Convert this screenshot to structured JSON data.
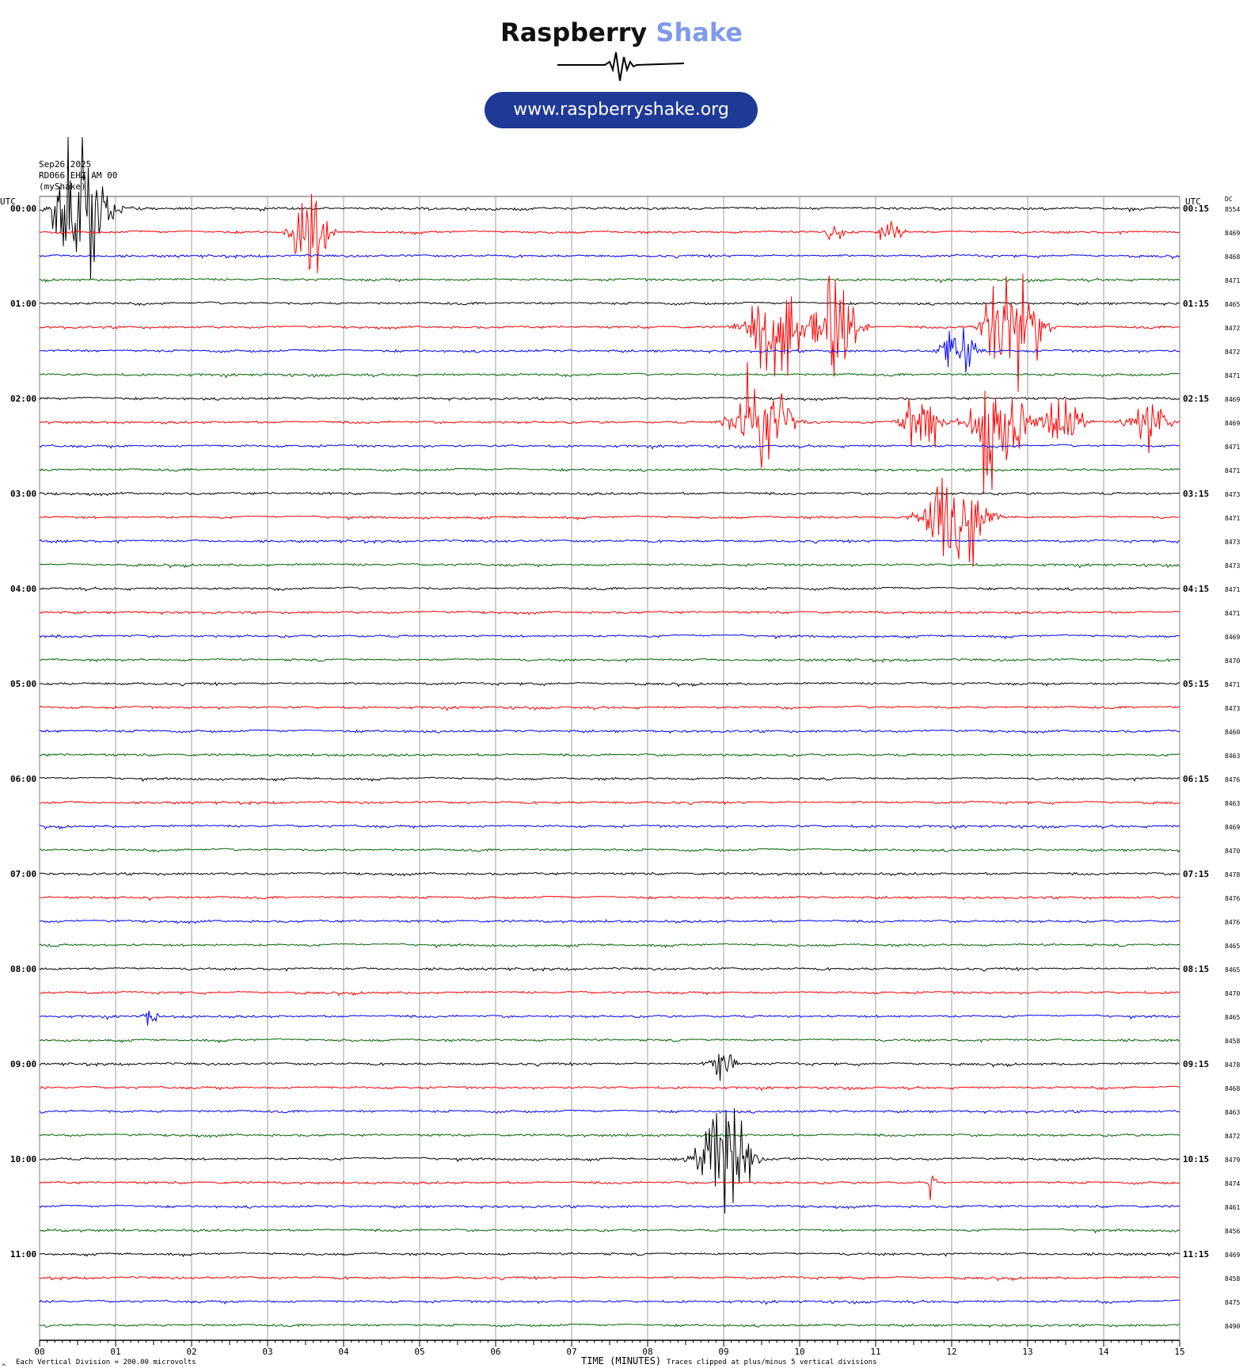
{
  "header": {
    "brand_primary": "Raspberry",
    "brand_accent": "Shake",
    "website": "www.raspberryshake.org"
  },
  "station_info": {
    "line1": "Sep26,2025",
    "line2": "RD066 EHZ AM 00",
    "line3": "(myShake)"
  },
  "labels": {
    "left_utc": "UTC",
    "right_utc": "UTC",
    "dc": "DC",
    "xlabel": "TIME (MINUTES)",
    "scale_note": "Each Vertical Division =  200.00 microvolts",
    "clip_note": "Traces clipped at plus/minus 5 vertical divisions",
    "corner_mark": "^"
  },
  "colors": {
    "trace_cycle": [
      "#000000",
      "#ff0000",
      "#0000ff",
      "#006400"
    ],
    "brand_accent": "#7f9ae8",
    "pill": "#1e3a96",
    "grid": "#888888"
  },
  "chart_data": {
    "type": "line",
    "title": "",
    "x_ticks": [
      "00",
      "01",
      "02",
      "03",
      "04",
      "05",
      "06",
      "07",
      "08",
      "09",
      "10",
      "11",
      "12",
      "13",
      "14",
      "15"
    ],
    "xlim": [
      0,
      15
    ],
    "left_hour_labels": [
      "00:00",
      "01:00",
      "02:00",
      "03:00",
      "04:00",
      "05:00",
      "06:00",
      "07:00",
      "08:00",
      "09:00",
      "10:00",
      "11:00"
    ],
    "right_hour_labels": [
      "00:15",
      "01:15",
      "02:15",
      "03:15",
      "04:15",
      "05:15",
      "06:15",
      "07:15",
      "08:15",
      "09:15",
      "10:15",
      "11:15"
    ],
    "dc_values": [
      8554,
      8469,
      8468,
      8471,
      8465,
      8472,
      8472,
      8471,
      8469,
      8469,
      8471,
      8471,
      8473,
      8471,
      8473,
      8473,
      8471,
      8471,
      8469,
      8470,
      8471,
      8473,
      8460,
      8463,
      8476,
      8463,
      8469,
      8470,
      8478,
      8476,
      8476,
      8465,
      8465,
      8470,
      8465,
      8458,
      8478,
      8468,
      8463,
      8472,
      8479,
      8474,
      8461,
      8456,
      8469,
      8458,
      8475,
      8490
    ],
    "trace_count": 48,
    "events": [
      {
        "row": 0,
        "minute": 0.55,
        "amplitude": 8,
        "duration": 0.9
      },
      {
        "row": 1,
        "minute": 3.55,
        "amplitude": 5,
        "duration": 0.6
      },
      {
        "row": 1,
        "minute": 11.2,
        "amplitude": 1.4,
        "duration": 0.4
      },
      {
        "row": 1,
        "minute": 10.45,
        "amplitude": 1.2,
        "duration": 0.3
      },
      {
        "row": 5,
        "minute": 9.7,
        "amplitude": 5,
        "duration": 0.9
      },
      {
        "row": 5,
        "minute": 10.45,
        "amplitude": 5,
        "duration": 0.8
      },
      {
        "row": 5,
        "minute": 12.65,
        "amplitude": 5,
        "duration": 0.6
      },
      {
        "row": 5,
        "minute": 12.95,
        "amplitude": 4,
        "duration": 0.7
      },
      {
        "row": 6,
        "minute": 12.1,
        "amplitude": 2.5,
        "duration": 0.6
      },
      {
        "row": 9,
        "minute": 9.5,
        "amplitude": 5,
        "duration": 0.9
      },
      {
        "row": 9,
        "minute": 11.6,
        "amplitude": 4,
        "duration": 0.6
      },
      {
        "row": 9,
        "minute": 12.6,
        "amplitude": 5,
        "duration": 0.9
      },
      {
        "row": 9,
        "minute": 13.45,
        "amplitude": 3.5,
        "duration": 0.6
      },
      {
        "row": 9,
        "minute": 14.6,
        "amplitude": 3,
        "duration": 0.7
      },
      {
        "row": 13,
        "minute": 12.05,
        "amplitude": 5,
        "duration": 1.0
      },
      {
        "row": 36,
        "minute": 9.0,
        "amplitude": 1.2,
        "duration": 0.5
      },
      {
        "row": 40,
        "minute": 9.05,
        "amplitude": 5,
        "duration": 0.9
      },
      {
        "row": 41,
        "minute": 11.75,
        "amplitude": 2.5,
        "duration": 0.1
      },
      {
        "row": 29,
        "minute": 1.45,
        "amplitude": 1.4,
        "duration": 0.05
      },
      {
        "row": 34,
        "minute": 1.45,
        "amplitude": 0.8,
        "duration": 0.3
      }
    ]
  }
}
